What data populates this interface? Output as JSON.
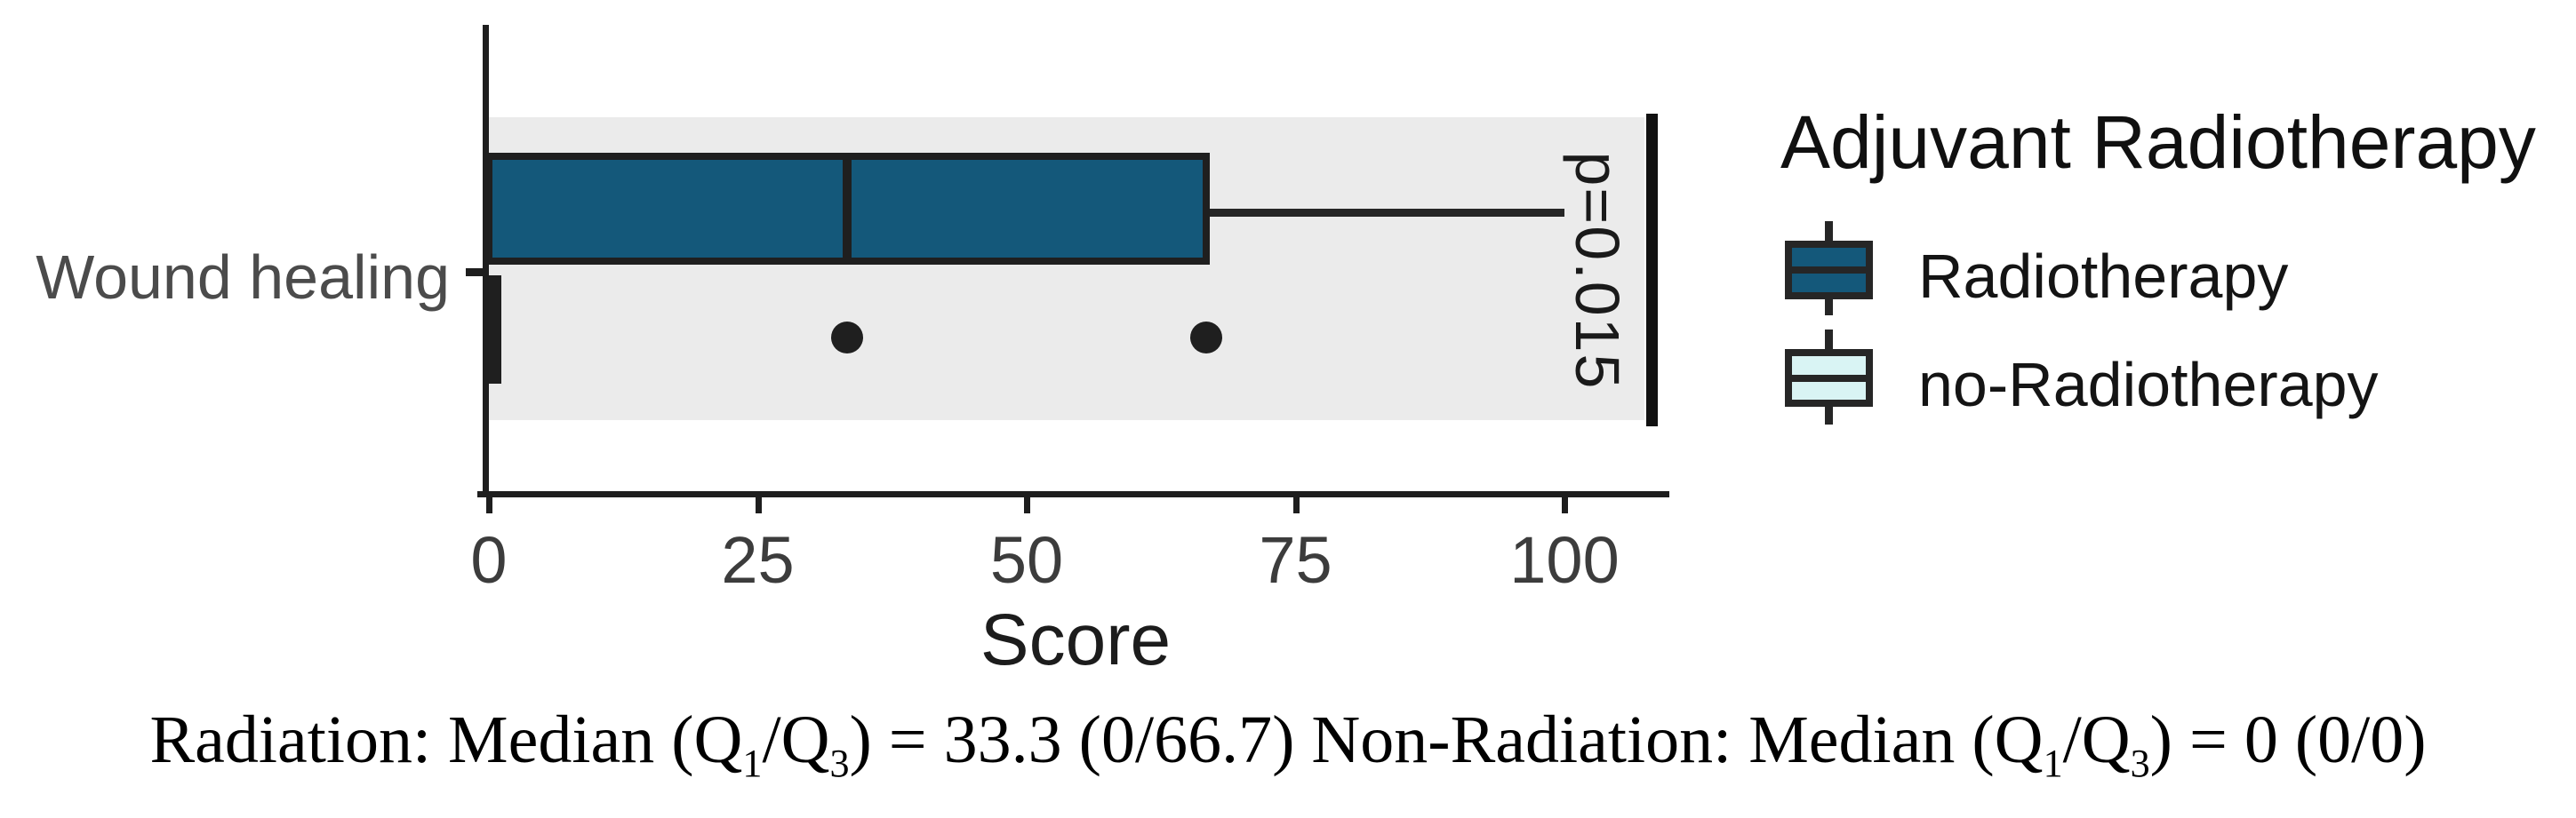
{
  "figure": {
    "y_category_label": "Wound healing",
    "x_axis": {
      "title": "Score"
    },
    "p_value_label": "p=0.015",
    "legend": {
      "title": "Adjuvant Radiotherapy",
      "items": [
        {
          "label": "Radiotherapy",
          "color": "#14587A"
        },
        {
          "label": "no-Radiotherapy",
          "color": "#D9F4F4"
        }
      ]
    },
    "caption_parts": [
      {
        "text": "Radiation: Median (Q"
      },
      {
        "sub": "1"
      },
      {
        "text": "/Q"
      },
      {
        "sub": "3"
      },
      {
        "text": ") = 33.3 (0/66.7) Non-Radiation: Median (Q"
      },
      {
        "sub": "1"
      },
      {
        "text": "/Q"
      },
      {
        "sub": "3"
      },
      {
        "text": ") = 0 (0/0)"
      }
    ]
  },
  "chart_data": {
    "type": "boxplot",
    "orientation": "horizontal",
    "title": "",
    "xlabel": "Score",
    "ylabel": "",
    "categories": [
      "Wound healing"
    ],
    "x_ticks": [
      0,
      25,
      50,
      75,
      100
    ],
    "xlim": [
      0,
      108
    ],
    "grid": false,
    "panel_background": "#EBEBEB",
    "legend_title": "Adjuvant Radiotherapy",
    "legend_position": "right",
    "series": [
      {
        "name": "Radiotherapy",
        "category": "Wound healing",
        "color": "#14587A",
        "q1": 0,
        "median": 33.3,
        "q3": 66.7,
        "whisker_low": 0,
        "whisker_high": 100,
        "outliers": []
      },
      {
        "name": "no-Radiotherapy",
        "category": "Wound healing",
        "color": "#D9F4F4",
        "q1": 0,
        "median": 0,
        "q3": 0,
        "whisker_low": 0,
        "whisker_high": 0,
        "outliers": [
          33.3,
          66.7
        ]
      }
    ],
    "annotations": [
      {
        "text": "p=0.015",
        "rotation": 90
      }
    ],
    "caption": "Radiation: Median (Q1/Q3) = 33.3 (0/66.7) Non-Radiation: Median (Q1/Q3) = 0 (0/0)"
  },
  "colors": {
    "radiotherapy_fill": "#14587A",
    "no_radiotherapy_fill": "#D9F4F4",
    "panel_band": "#EBEBEB",
    "ink": "#1F1F1F"
  }
}
